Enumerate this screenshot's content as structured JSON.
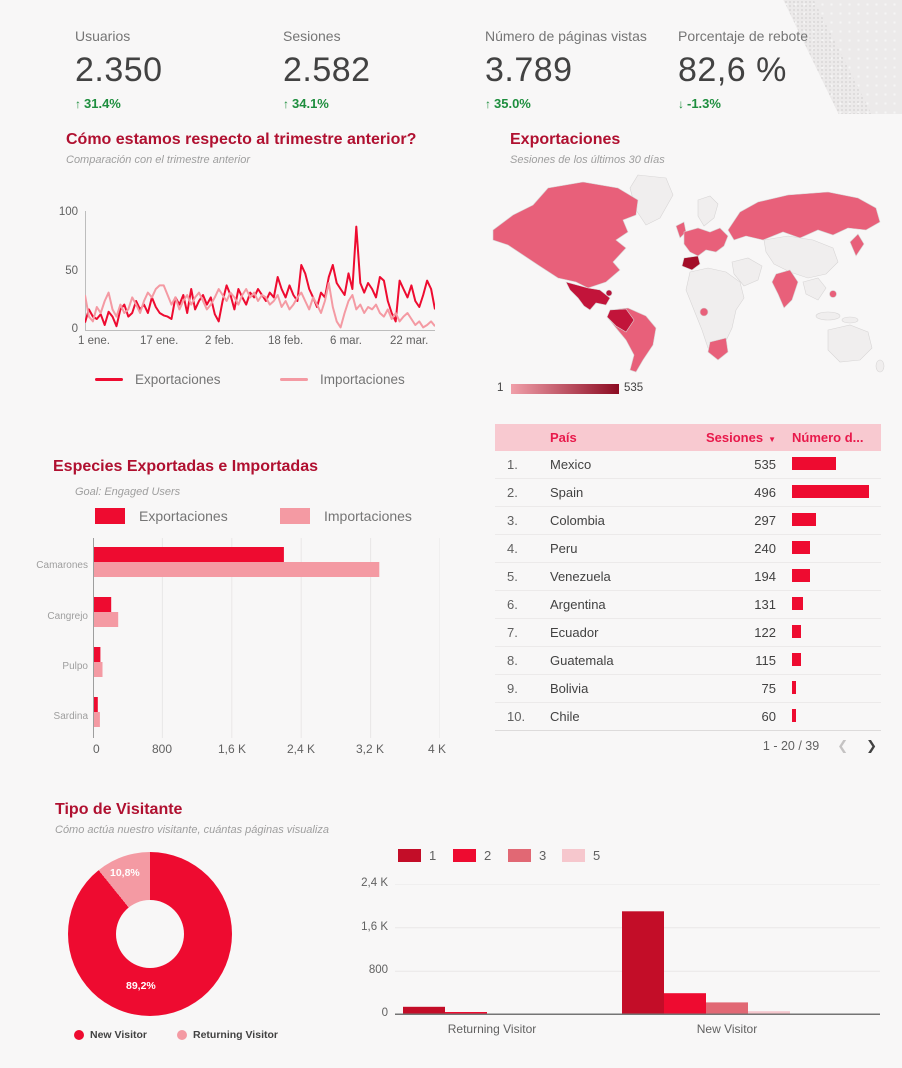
{
  "theme": {
    "bg": "#F8F7F7",
    "red": "#EE0B30",
    "pink": "#F49AA3",
    "darkred": "#C30D28",
    "rose": "#E16874",
    "palepink": "#F6C7CD",
    "titlered": "#B01030",
    "green": "#1E8E3E",
    "headerpink": "#F8C9D0",
    "headertext": "#E8194B",
    "scale_from": "#F09FA9",
    "scale_to": "#8C0B22"
  },
  "icons": {
    "up_arrow": "↑",
    "down_arrow": "↓",
    "sort_caret": "▼",
    "chevron_left": "❮",
    "chevron_right": "❯"
  },
  "scorecards": [
    {
      "label": "Usuarios",
      "value": "2.350",
      "delta": "31.4%",
      "direction": "up"
    },
    {
      "label": "Sesiones",
      "value": "2.582",
      "delta": "34.1%",
      "direction": "up"
    },
    {
      "label": "Número de páginas vistas",
      "value": "3.789",
      "delta": "35.0%",
      "direction": "up"
    },
    {
      "label": "Porcentaje de rebote",
      "value": "82,6 %",
      "delta": "-1.3%",
      "direction": "down"
    }
  ],
  "map": {
    "title": "Exportaciones",
    "subtitle": "Sesiones de los últimos 30 días",
    "scale_min": "1",
    "scale_max": "535",
    "region_colors": {
      "north_america": "#E8607A",
      "greenland": "#F0EEEE",
      "mexico_central_america": "#C2143A",
      "caribbean": "#B5123A",
      "south_america": "#E8607A",
      "andes": "#C2143A",
      "uk": "#E8607A",
      "europe": "#E8607A",
      "scandinavia": "#F0EEEE",
      "spain": "#A30D28",
      "africa": "#F0EEEE",
      "gabon": "#E8607A",
      "south_africa": "#E8607A",
      "russia": "#E8607A",
      "middle_east": "#F0EEEE",
      "china": "#F0EEEE",
      "india": "#E8607A",
      "se_asia": "#F0EEEE",
      "philippines": "#E8607A",
      "japan": "#E8607A",
      "indonesia": "#F0EEEE",
      "australia": "#F0EEEE",
      "new_zealand": "#F0EEEE"
    }
  },
  "table": {
    "headers": {
      "country": "País",
      "sessions": "Sesiones",
      "pageviews": "Número d..."
    },
    "pagination": "1 - 20 / 39",
    "rows": [
      {
        "rank": "1.",
        "country": "Mexico",
        "sessions": "535",
        "bar": 0.5
      },
      {
        "rank": "2.",
        "country": "Spain",
        "sessions": "496",
        "bar": 0.88
      },
      {
        "rank": "3.",
        "country": "Colombia",
        "sessions": "297",
        "bar": 0.27
      },
      {
        "rank": "4.",
        "country": "Peru",
        "sessions": "240",
        "bar": 0.2
      },
      {
        "rank": "5.",
        "country": "Venezuela",
        "sessions": "194",
        "bar": 0.2
      },
      {
        "rank": "6.",
        "country": "Argentina",
        "sessions": "131",
        "bar": 0.12
      },
      {
        "rank": "7.",
        "country": "Ecuador",
        "sessions": "122",
        "bar": 0.1
      },
      {
        "rank": "8.",
        "country": "Guatemala",
        "sessions": "115",
        "bar": 0.1
      },
      {
        "rank": "9.",
        "country": "Bolivia",
        "sessions": "75",
        "bar": 0.05
      },
      {
        "rank": "10.",
        "country": "Chile",
        "sessions": "60",
        "bar": 0.045
      }
    ]
  },
  "chart_data": [
    {
      "id": "trend",
      "type": "line",
      "title": "Cómo estamos respecto al trimestre anterior?",
      "subtitle": "Comparación con el trimestre anterior",
      "x_ticks": [
        "1 ene.",
        "17 ene.",
        "2 feb.",
        "18 feb.",
        "6 mar.",
        "22 mar."
      ],
      "y_tick_labels": [
        "100",
        "50",
        "0"
      ],
      "ylim": [
        0,
        100
      ],
      "series": [
        {
          "name": "Exportaciones",
          "color_key": "red",
          "values": [
            7,
            18,
            12,
            10,
            14,
            5,
            16,
            12,
            4,
            18,
            22,
            12,
            15,
            25,
            18,
            22,
            15,
            28,
            20,
            15,
            13,
            12,
            10,
            28,
            22,
            30,
            15,
            35,
            18,
            25,
            30,
            22,
            28,
            14,
            8,
            25,
            38,
            30,
            18,
            35,
            28,
            22,
            32,
            28,
            35,
            30,
            25,
            32,
            28,
            45,
            35,
            28,
            38,
            30,
            25,
            55,
            48,
            35,
            28,
            20,
            32,
            28,
            45,
            55,
            40,
            35,
            30,
            48,
            35,
            87,
            40,
            32,
            40,
            35,
            28,
            45,
            42,
            25,
            15,
            8,
            42,
            35,
            28,
            38,
            25,
            20,
            30,
            42,
            35,
            18
          ]
        },
        {
          "name": "Importaciones",
          "color_key": "pink",
          "values": [
            30,
            12,
            8,
            20,
            15,
            25,
            32,
            18,
            12,
            22,
            15,
            18,
            28,
            22,
            15,
            25,
            32,
            28,
            35,
            38,
            38,
            30,
            22,
            28,
            18,
            25,
            30,
            22,
            28,
            32,
            25,
            18,
            22,
            28,
            35,
            30,
            25,
            32,
            28,
            22,
            30,
            35,
            28,
            32,
            25,
            30,
            28,
            22,
            25,
            30,
            20,
            25,
            18,
            22,
            28,
            32,
            25,
            18,
            28,
            22,
            15,
            25,
            40,
            20,
            8,
            3,
            15,
            25,
            30,
            18,
            22,
            15,
            20,
            18,
            22,
            15,
            12,
            18,
            10,
            15,
            8,
            12,
            15,
            10,
            5,
            8,
            3,
            5,
            8,
            4
          ]
        }
      ]
    },
    {
      "id": "species",
      "type": "bar",
      "title": "Especies Exportadas e Importadas",
      "subtitle": "Goal: Engaged Users",
      "categories": [
        "Camarones",
        "Cangrejo",
        "Pulpo",
        "Sardina"
      ],
      "x_ticks": [
        "0",
        "800",
        "1,6 K",
        "2,4 K",
        "3,2 K",
        "4 K"
      ],
      "xlim": [
        0,
        4000
      ],
      "series": [
        {
          "name": "Exportaciones",
          "color_key": "red",
          "values": [
            2200,
            210,
            85,
            55
          ]
        },
        {
          "name": "Importaciones",
          "color_key": "pink",
          "values": [
            3300,
            290,
            110,
            80
          ]
        }
      ]
    },
    {
      "id": "visitor_share",
      "type": "pie",
      "title": "Tipo de Visitante",
      "subtitle": "Cómo actúa nuestro visitante, cuántas páginas visualiza",
      "slices": [
        {
          "name": "New Visitor",
          "value": 89.2,
          "label": "89,2%",
          "color_key": "red"
        },
        {
          "name": "Returning Visitor",
          "value": 10.8,
          "label": "10,8%",
          "color_key": "pink"
        }
      ]
    },
    {
      "id": "pages_per_visit",
      "type": "column",
      "categories": [
        "Returning Visitor",
        "New Visitor"
      ],
      "y_tick_labels": [
        "2,4 K",
        "1,6 K",
        "800",
        "0"
      ],
      "ylim": [
        0,
        2400
      ],
      "series": [
        {
          "name": "1",
          "color_key": "darkred",
          "values": [
            150,
            1900
          ]
        },
        {
          "name": "2",
          "color_key": "red",
          "values": [
            55,
            400
          ]
        },
        {
          "name": "3",
          "color_key": "rose",
          "values": [
            15,
            230
          ]
        },
        {
          "name": "5",
          "color_key": "palepink",
          "values": [
            10,
            70
          ]
        }
      ]
    }
  ]
}
